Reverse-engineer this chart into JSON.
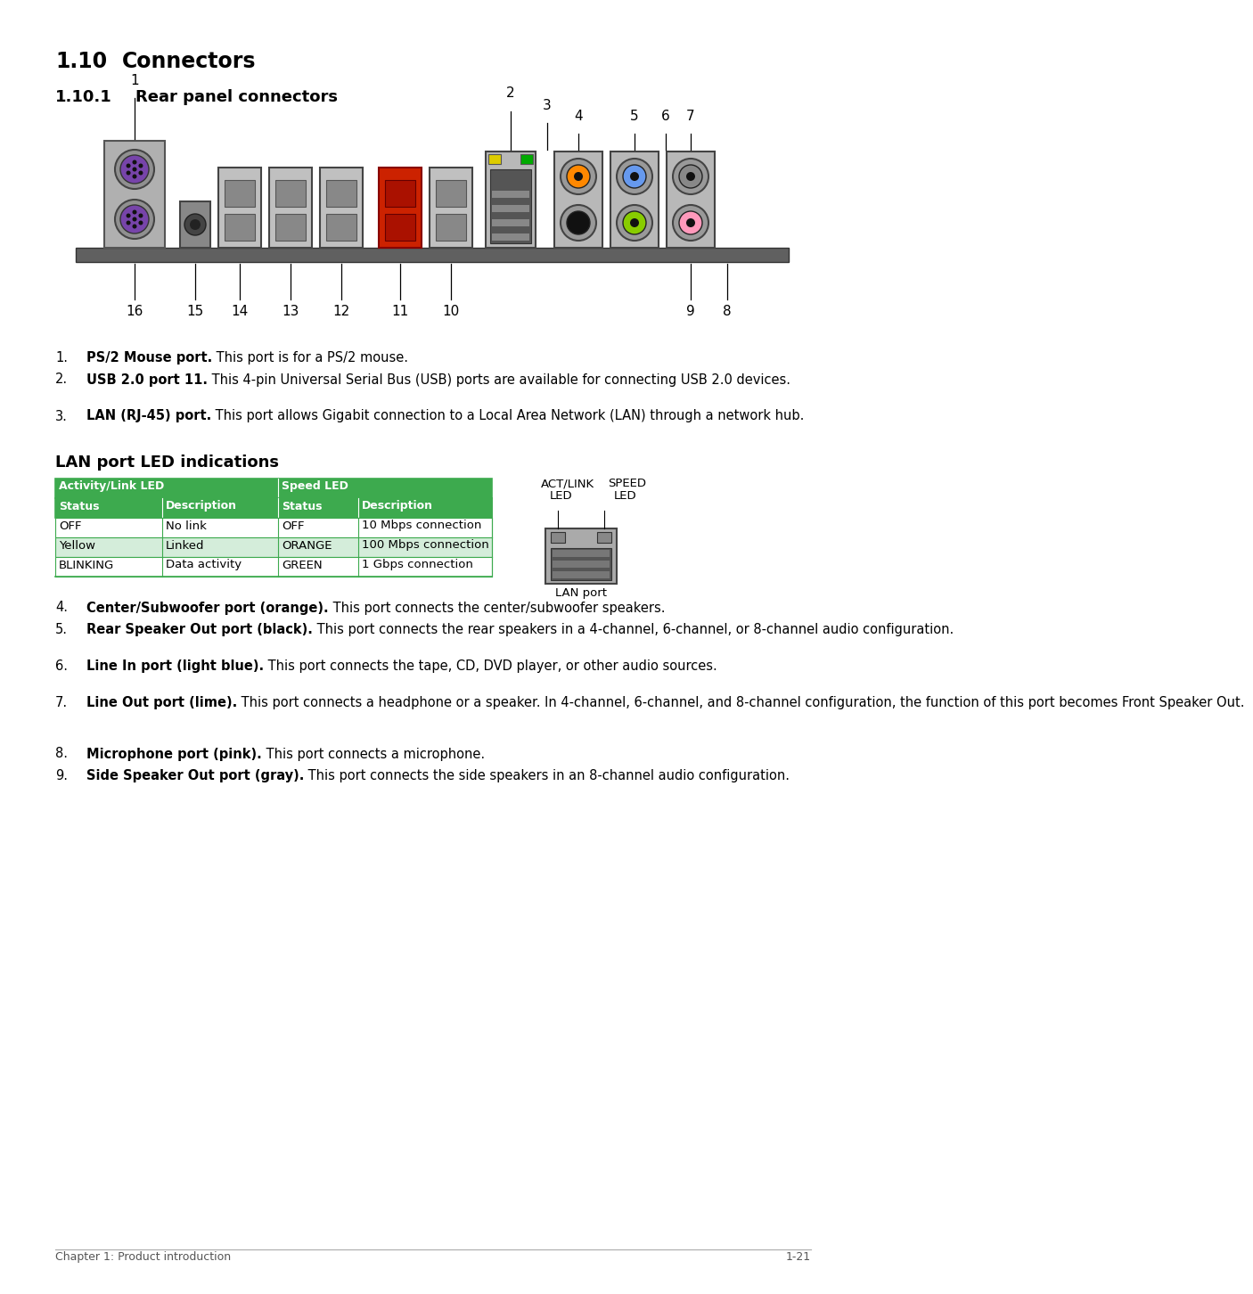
{
  "bg_color": "#ffffff",
  "title1_num": "1.10",
  "title1_text": "Connectors",
  "title2_num": "1.10.1",
  "title2_text": "Rear panel connectors",
  "items123": [
    {
      "num": "1.",
      "bold": "PS/2 Mouse port.",
      "rest": " This port is for a PS/2 mouse.",
      "lines": 1
    },
    {
      "num": "2.",
      "bold": "USB 2.0 port 11.",
      "rest": " This 4-pin Universal Serial Bus (USB) ports are available for connecting USB 2.0 devices.",
      "lines": 2
    },
    {
      "num": "3.",
      "bold": "LAN (RJ-45) port.",
      "rest": " This port allows Gigabit connection to a Local Area Network (LAN) through a network hub.",
      "lines": 2
    }
  ],
  "lan_section_title": "LAN port LED indications",
  "lan_table_header1": [
    "Activity/Link LED",
    "Speed LED"
  ],
  "lan_table_col_header": [
    "Status",
    "Description",
    "Status",
    "Description"
  ],
  "lan_table_rows": [
    [
      "OFF",
      "No link",
      "OFF",
      "10 Mbps connection"
    ],
    [
      "Yellow",
      "Linked",
      "ORANGE",
      "100 Mbps connection"
    ],
    [
      "BLINKING",
      "Data activity",
      "GREEN",
      "1 Gbps connection"
    ]
  ],
  "items49": [
    {
      "num": "4.",
      "bold": "Center/Subwoofer port (orange).",
      "rest": " This port connects the center/subwoofer speakers.",
      "lines": 1
    },
    {
      "num": "5.",
      "bold": "Rear Speaker Out port (black).",
      "rest": " This port connects the rear speakers in a 4-channel, 6-channel, or 8-channel audio configuration.",
      "lines": 2
    },
    {
      "num": "6.",
      "bold": "Line In port (light blue).",
      "rest": " This port connects the tape, CD, DVD player, or other audio sources.",
      "lines": 2
    },
    {
      "num": "7.",
      "bold": "Line Out port (lime).",
      "rest": " This port connects a headphone or a speaker. In 4-channel, 6-channel, and 8-channel configuration, the function of this port becomes Front Speaker Out.",
      "lines": 3
    },
    {
      "num": "8.",
      "bold": "Microphone port (pink).",
      "rest": " This port connects a microphone.",
      "lines": 1
    },
    {
      "num": "9.",
      "bold": "Side Speaker Out port (gray).",
      "rest": " This port connects the side speakers in an 8-channel audio configuration.",
      "lines": 2
    }
  ],
  "footer_left": "Chapter 1: Product introduction",
  "footer_right": "1-21",
  "green_dark": "#3daa4e",
  "green_light": "#d4edda",
  "table_border": "#3daa4e"
}
